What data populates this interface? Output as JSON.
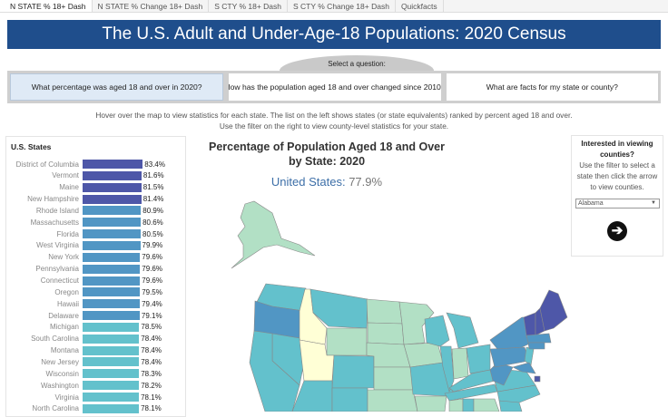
{
  "tabs": [
    "N STATE % 18+ Dash",
    "N STATE % Change 18+ Dash",
    "S CTY % 18+ Dash",
    "S CTY % Change 18+ Dash",
    "Quickfacts"
  ],
  "header": {
    "title": "The U.S. Adult and Under-Age-18 Populations: 2020 Census"
  },
  "questions": {
    "prompt": "Select a question:",
    "items": [
      "What percentage was aged 18 and over in 2020?",
      "How has the population aged 18 and over changed since 2010?",
      "What are facts for my state or county?"
    ],
    "selected": 0
  },
  "instructions": [
    "Hover over the map to view statistics for each state. The list on the left shows states (or state equivalents) ranked by percent aged 18 and over.",
    "Use the filter on the right to view county-level statistics for your state."
  ],
  "states_panel": {
    "title": "U.S. States",
    "rows": [
      {
        "name": "District of Columbia",
        "value": 83.4,
        "label": "83.4%"
      },
      {
        "name": "Vermont",
        "value": 81.6,
        "label": "81.6%"
      },
      {
        "name": "Maine",
        "value": 81.5,
        "label": "81.5%"
      },
      {
        "name": "New Hampshire",
        "value": 81.4,
        "label": "81.4%"
      },
      {
        "name": "Rhode Island",
        "value": 80.9,
        "label": "80.9%"
      },
      {
        "name": "Massachusetts",
        "value": 80.6,
        "label": "80.6%"
      },
      {
        "name": "Florida",
        "value": 80.5,
        "label": "80.5%"
      },
      {
        "name": "West Virginia",
        "value": 79.9,
        "label": "79.9%"
      },
      {
        "name": "New York",
        "value": 79.6,
        "label": "79.6%"
      },
      {
        "name": "Pennsylvania",
        "value": 79.6,
        "label": "79.6%"
      },
      {
        "name": "Connecticut",
        "value": 79.6,
        "label": "79.6%"
      },
      {
        "name": "Oregon",
        "value": 79.5,
        "label": "79.5%"
      },
      {
        "name": "Hawaii",
        "value": 79.4,
        "label": "79.4%"
      },
      {
        "name": "Delaware",
        "value": 79.1,
        "label": "79.1%"
      },
      {
        "name": "Michigan",
        "value": 78.5,
        "label": "78.5%"
      },
      {
        "name": "South Carolina",
        "value": 78.4,
        "label": "78.4%"
      },
      {
        "name": "Montana",
        "value": 78.4,
        "label": "78.4%"
      },
      {
        "name": "New Jersey",
        "value": 78.4,
        "label": "78.4%"
      },
      {
        "name": "Wisconsin",
        "value": 78.3,
        "label": "78.3%"
      },
      {
        "name": "Washington",
        "value": 78.2,
        "label": "78.2%"
      },
      {
        "name": "Virginia",
        "value": 78.1,
        "label": "78.1%"
      },
      {
        "name": "North Carolina",
        "value": 78.1,
        "label": "78.1%"
      }
    ]
  },
  "map": {
    "title_line1": "Percentage of Population Aged 18 and Over",
    "title_line2": "by State: 2020",
    "us_label": "United States:",
    "us_value": "77.9%",
    "colors": {
      "highest": "#4e57a8",
      "high": "#5196c4",
      "mid": "#63c1cc",
      "low": "#b2e0c5",
      "lowest": "#ffffd6"
    }
  },
  "county_filter": {
    "heading": "Interested in viewing counties?",
    "text": "Use the filter to select a state then click the arrow to view counties.",
    "selected": "Alabama",
    "arrow_icon": "arrow-right-circle-icon"
  }
}
